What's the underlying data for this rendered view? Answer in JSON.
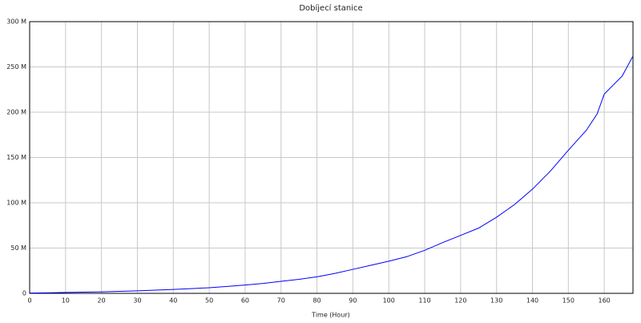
{
  "chart_data": {
    "type": "line",
    "title": "Dobíjecí stanice",
    "x_label": "Time (Hour)",
    "x": [
      0,
      5,
      10,
      15,
      20,
      25,
      30,
      35,
      40,
      45,
      50,
      55,
      60,
      65,
      70,
      75,
      80,
      85,
      90,
      95,
      100,
      105,
      110,
      115,
      120,
      125,
      130,
      135,
      140,
      145,
      150,
      155,
      158,
      160,
      165,
      168
    ],
    "series": [
      {
        "name": "Dobíjecí stanice",
        "color": "#0000ff",
        "values": [
          300000,
          600000,
          1000000,
          1300000,
          1700000,
          2200000,
          2800000,
          3500000,
          4300000,
          5200000,
          6200000,
          7600000,
          9200000,
          11000000,
          13300000,
          15500000,
          18300000,
          22000000,
          26500000,
          31000000,
          35500000,
          40500000,
          47500000,
          56000000,
          64000000,
          72000000,
          84000000,
          98000000,
          115000000,
          135000000,
          158000000,
          180000000,
          198000000,
          220000000,
          240000000,
          262000000
        ]
      }
    ],
    "xlim": [
      0,
      168
    ],
    "xticks": [
      0,
      10,
      20,
      30,
      40,
      50,
      60,
      70,
      80,
      90,
      100,
      110,
      120,
      130,
      140,
      150,
      160
    ],
    "ylim": [
      0,
      300000000
    ],
    "yticks": [
      0,
      {
        "value": 50000000,
        "label": "50 M"
      },
      {
        "value": 100000000,
        "label": "100 M"
      },
      {
        "value": 150000000,
        "label": "150 M"
      },
      {
        "value": 200000000,
        "label": "200 M"
      },
      {
        "value": 250000000,
        "label": "250 M"
      },
      {
        "value": 300000000,
        "label": "300 M"
      }
    ],
    "grid": true
  }
}
